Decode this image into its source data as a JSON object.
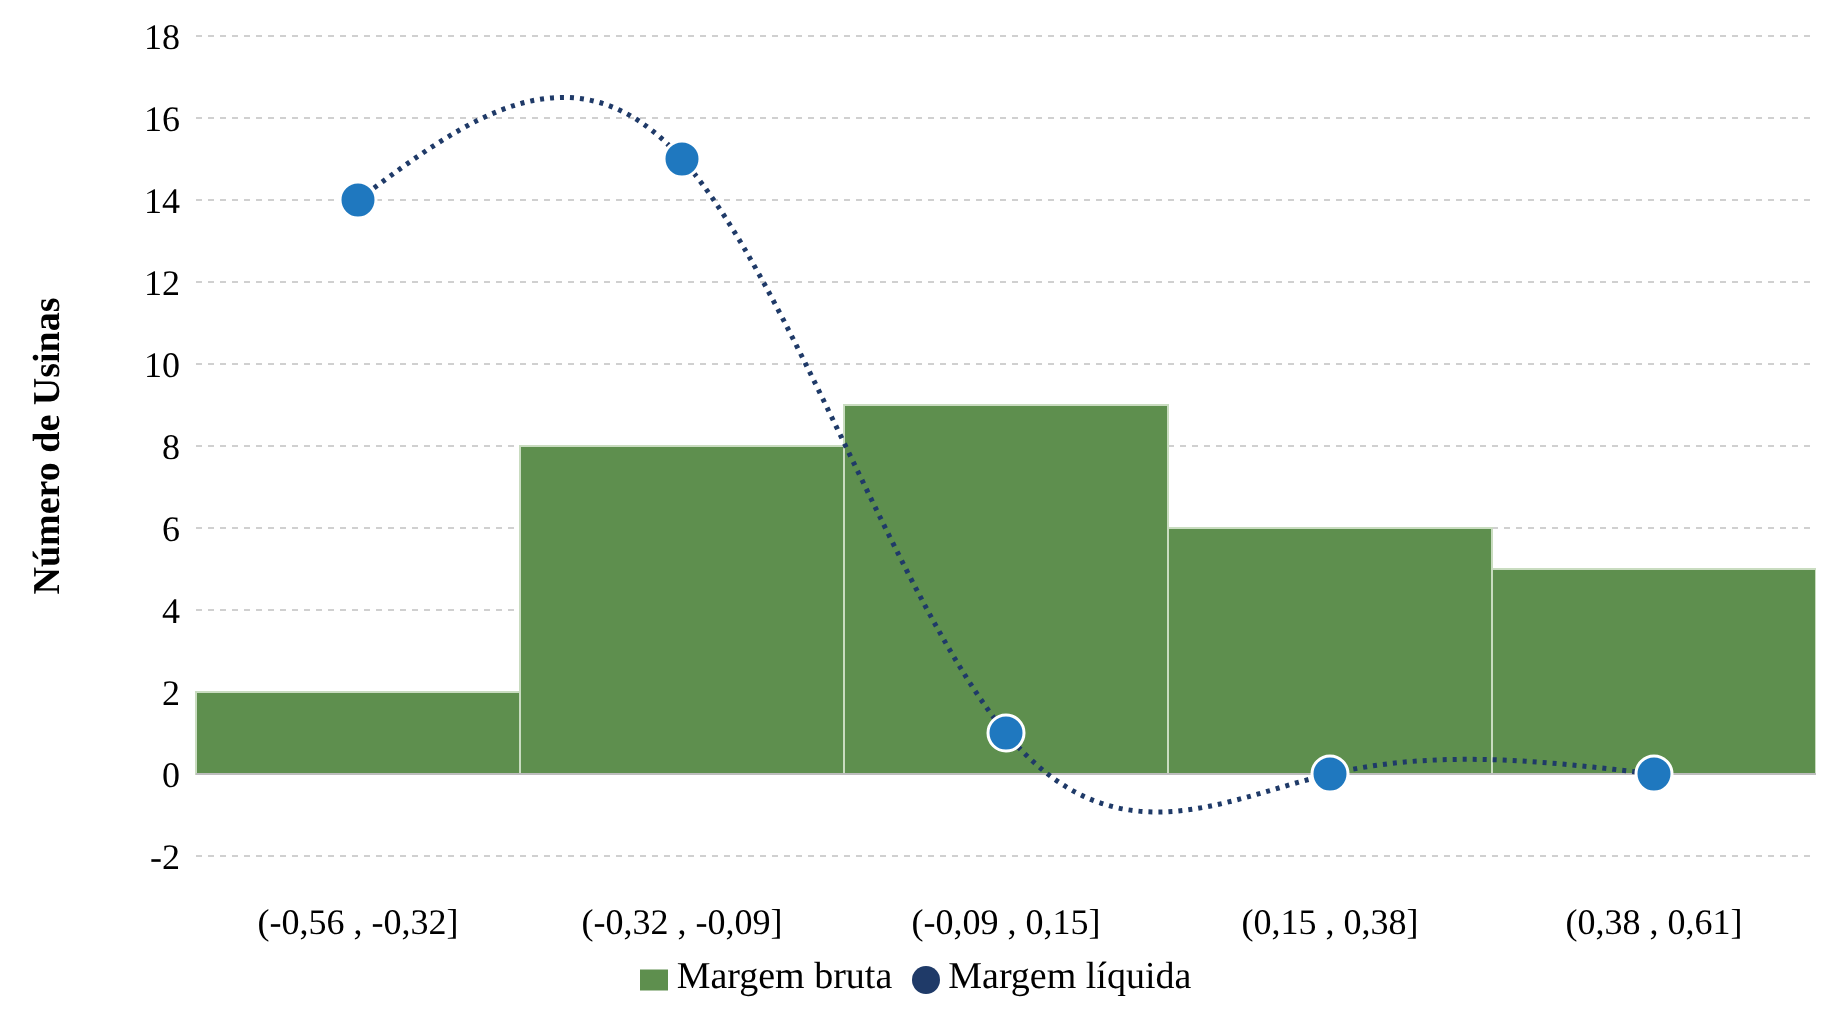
{
  "chart_data": {
    "type": "bar",
    "ylabel": "Número de Usinas",
    "categories": [
      "(-0,56 , -0,32]",
      "(-0,32 , -0,09]",
      "(-0,09 , 0,15]",
      "(0,15 , 0,38]",
      "(0,38 , 0,61]"
    ],
    "series": [
      {
        "name": "Margem bruta",
        "color": "#5e8f4e",
        "values": [
          2,
          8,
          9,
          6,
          5
        ]
      },
      {
        "name": "Margem líquida",
        "type": "line",
        "color": "#1f78bf",
        "values": [
          14,
          15,
          1,
          0,
          0
        ],
        "marker": "circle",
        "line_style": "dotted"
      }
    ],
    "ylim": [
      -2,
      18
    ],
    "yticks": [
      -2,
      0,
      2,
      4,
      6,
      8,
      10,
      12,
      14,
      16,
      18
    ],
    "grid": "y",
    "legend": "bottom"
  }
}
